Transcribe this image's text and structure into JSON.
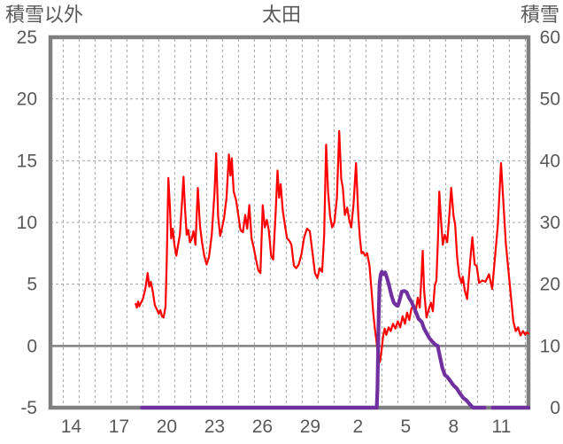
{
  "page": {
    "background": "#FFFFFF"
  },
  "titles": {
    "left_axis_title": "積雪以外",
    "chart_title": "太田",
    "right_axis_title": "積雪"
  },
  "chart_data": {
    "type": "line",
    "title": "太田",
    "left_axis": {
      "title": "積雪以外",
      "min": -5,
      "max": 25,
      "tick_interval": 5,
      "ticks": [
        25,
        20,
        15,
        10,
        5,
        0,
        -5
      ]
    },
    "right_axis": {
      "title": "積雪",
      "min": 0,
      "max": 60,
      "tick_interval": 10,
      "ticks": [
        60,
        50,
        40,
        30,
        20,
        10,
        0
      ]
    },
    "x_axis": {
      "domain_min": 13.2,
      "domain_max": 43.2,
      "gridline_interval_days": 1,
      "gridline_day_start": 14,
      "gridline_day_end": 43,
      "tick_labels": [
        {
          "label": "14",
          "t": 14.5
        },
        {
          "label": "17",
          "t": 17.5
        },
        {
          "label": "20",
          "t": 20.5
        },
        {
          "label": "23",
          "t": 23.5
        },
        {
          "label": "26",
          "t": 26.5
        },
        {
          "label": "29",
          "t": 29.5
        },
        {
          "label": "2",
          "t": 32.5
        },
        {
          "label": "5",
          "t": 35.5
        },
        {
          "label": "8",
          "t": 38.5
        },
        {
          "label": "11",
          "t": 41.5
        }
      ]
    },
    "grid": {
      "dash_color": "#A3A3A3",
      "zero_line_color": "#808080",
      "border_color": "#808080"
    },
    "series": [
      {
        "id": "temperature-non-snow",
        "axis": "left",
        "color": "#FF0000",
        "width": 2.2,
        "points": [
          [
            18.55,
            3.4
          ],
          [
            18.62,
            3.1
          ],
          [
            18.7,
            3.6
          ],
          [
            18.78,
            3.2
          ],
          [
            18.88,
            3.5
          ],
          [
            19.0,
            3.8
          ],
          [
            19.15,
            4.6
          ],
          [
            19.3,
            5.9
          ],
          [
            19.4,
            4.8
          ],
          [
            19.5,
            5.2
          ],
          [
            19.62,
            4.4
          ],
          [
            19.75,
            3.3
          ],
          [
            19.9,
            2.9
          ],
          [
            20.0,
            2.6
          ],
          [
            20.1,
            2.9
          ],
          [
            20.2,
            2.4
          ],
          [
            20.3,
            2.3
          ],
          [
            20.42,
            3.2
          ],
          [
            20.5,
            7.0
          ],
          [
            20.6,
            13.6
          ],
          [
            20.7,
            11.2
          ],
          [
            20.78,
            8.7
          ],
          [
            20.88,
            9.5
          ],
          [
            20.98,
            8.2
          ],
          [
            21.1,
            7.3
          ],
          [
            21.2,
            8.1
          ],
          [
            21.32,
            9.0
          ],
          [
            21.45,
            11.5
          ],
          [
            21.55,
            13.7
          ],
          [
            21.65,
            11.0
          ],
          [
            21.75,
            9.0
          ],
          [
            21.85,
            9.4
          ],
          [
            21.95,
            8.4
          ],
          [
            22.05,
            8.6
          ],
          [
            22.18,
            9.3
          ],
          [
            22.3,
            8.2
          ],
          [
            22.45,
            12.8
          ],
          [
            22.58,
            9.8
          ],
          [
            22.72,
            8.3
          ],
          [
            22.85,
            7.3
          ],
          [
            23.0,
            6.6
          ],
          [
            23.15,
            7.2
          ],
          [
            23.32,
            9.0
          ],
          [
            23.5,
            12.5
          ],
          [
            23.6,
            15.6
          ],
          [
            23.72,
            10.5
          ],
          [
            23.85,
            8.9
          ],
          [
            23.98,
            9.6
          ],
          [
            24.1,
            10.4
          ],
          [
            24.25,
            12.0
          ],
          [
            24.4,
            15.5
          ],
          [
            24.5,
            13.8
          ],
          [
            24.58,
            15.2
          ],
          [
            24.7,
            12.5
          ],
          [
            24.85,
            11.8
          ],
          [
            25.0,
            10.5
          ],
          [
            25.12,
            9.4
          ],
          [
            25.28,
            9.2
          ],
          [
            25.42,
            10.6
          ],
          [
            25.55,
            9.5
          ],
          [
            25.68,
            11.4
          ],
          [
            25.82,
            8.7
          ],
          [
            25.95,
            8.0
          ],
          [
            26.1,
            7.0
          ],
          [
            26.25,
            6.1
          ],
          [
            26.38,
            5.9
          ],
          [
            26.52,
            11.4
          ],
          [
            26.65,
            9.6
          ],
          [
            26.78,
            10.2
          ],
          [
            26.9,
            9.4
          ],
          [
            27.05,
            7.3
          ],
          [
            27.18,
            7.0
          ],
          [
            27.32,
            10.5
          ],
          [
            27.45,
            14.2
          ],
          [
            27.55,
            12.0
          ],
          [
            27.65,
            13.1
          ],
          [
            27.78,
            11.0
          ],
          [
            27.9,
            9.9
          ],
          [
            28.05,
            8.7
          ],
          [
            28.2,
            8.5
          ],
          [
            28.32,
            8.2
          ],
          [
            28.48,
            6.5
          ],
          [
            28.62,
            6.3
          ],
          [
            28.78,
            6.6
          ],
          [
            28.95,
            7.4
          ],
          [
            29.12,
            8.8
          ],
          [
            29.3,
            9.5
          ],
          [
            29.48,
            9.3
          ],
          [
            29.65,
            7.5
          ],
          [
            29.8,
            5.9
          ],
          [
            29.95,
            5.5
          ],
          [
            30.1,
            6.3
          ],
          [
            30.25,
            6.0
          ],
          [
            30.38,
            9.0
          ],
          [
            30.5,
            16.3
          ],
          [
            30.62,
            12.5
          ],
          [
            30.75,
            10.5
          ],
          [
            30.88,
            9.6
          ],
          [
            31.02,
            10.0
          ],
          [
            31.18,
            12.0
          ],
          [
            31.32,
            17.4
          ],
          [
            31.45,
            13.5
          ],
          [
            31.55,
            12.8
          ],
          [
            31.68,
            10.6
          ],
          [
            31.82,
            11.2
          ],
          [
            31.95,
            10.2
          ],
          [
            32.08,
            9.6
          ],
          [
            32.22,
            11.5
          ],
          [
            32.38,
            14.8
          ],
          [
            32.52,
            10.5
          ],
          [
            32.62,
            8.7
          ],
          [
            32.72,
            7.5
          ],
          [
            32.82,
            7.6
          ],
          [
            32.95,
            7.3
          ],
          [
            33.08,
            7.5
          ],
          [
            33.22,
            6.5
          ],
          [
            33.35,
            4.5
          ],
          [
            33.45,
            2.8
          ],
          [
            33.55,
            1.5
          ],
          [
            33.65,
            0.5
          ],
          [
            33.78,
            -1.0
          ],
          [
            33.88,
            -1.3
          ],
          [
            33.98,
            -0.4
          ],
          [
            34.08,
            0.8
          ],
          [
            34.18,
            1.4
          ],
          [
            34.28,
            0.9
          ],
          [
            34.42,
            1.5
          ],
          [
            34.55,
            1.2
          ],
          [
            34.7,
            1.8
          ],
          [
            34.85,
            1.4
          ],
          [
            35.0,
            2.0
          ],
          [
            35.15,
            1.5
          ],
          [
            35.3,
            2.4
          ],
          [
            35.45,
            1.8
          ],
          [
            35.58,
            2.7
          ],
          [
            35.72,
            2.1
          ],
          [
            35.85,
            3.0
          ],
          [
            35.98,
            3.3
          ],
          [
            36.1,
            2.6
          ],
          [
            36.25,
            3.9
          ],
          [
            36.38,
            3.1
          ],
          [
            36.5,
            6.0
          ],
          [
            36.56,
            7.7
          ],
          [
            36.65,
            4.5
          ],
          [
            36.8,
            2.3
          ],
          [
            36.95,
            3.0
          ],
          [
            37.08,
            3.5
          ],
          [
            37.2,
            2.8
          ],
          [
            37.32,
            4.9
          ],
          [
            37.42,
            5.3
          ],
          [
            37.52,
            8.7
          ],
          [
            37.6,
            12.5
          ],
          [
            37.72,
            10.0
          ],
          [
            37.82,
            8.2
          ],
          [
            37.95,
            9.0
          ],
          [
            38.1,
            8.4
          ],
          [
            38.22,
            10.4
          ],
          [
            38.35,
            12.8
          ],
          [
            38.5,
            10.5
          ],
          [
            38.6,
            9.8
          ],
          [
            38.72,
            7.2
          ],
          [
            38.85,
            5.7
          ],
          [
            39.0,
            5.1
          ],
          [
            39.08,
            5.6
          ],
          [
            39.2,
            4.5
          ],
          [
            39.35,
            3.8
          ],
          [
            39.55,
            7.0
          ],
          [
            39.68,
            8.8
          ],
          [
            39.82,
            6.6
          ],
          [
            39.95,
            6.5
          ],
          [
            40.1,
            5.1
          ],
          [
            40.3,
            5.3
          ],
          [
            40.5,
            5.2
          ],
          [
            40.72,
            5.8
          ],
          [
            40.92,
            4.6
          ],
          [
            41.1,
            7.2
          ],
          [
            41.28,
            9.8
          ],
          [
            41.48,
            14.8
          ],
          [
            41.62,
            11.7
          ],
          [
            41.78,
            8.3
          ],
          [
            41.95,
            6.0
          ],
          [
            42.1,
            4.0
          ],
          [
            42.25,
            2.0
          ],
          [
            42.4,
            1.2
          ],
          [
            42.55,
            1.5
          ],
          [
            42.7,
            0.85
          ],
          [
            42.85,
            1.2
          ],
          [
            43.0,
            0.9
          ],
          [
            43.1,
            1.1
          ],
          [
            43.2,
            1.0
          ]
        ]
      },
      {
        "id": "snow-depth",
        "axis": "right",
        "color": "#7030A0",
        "width": 4.2,
        "segments": [
          [
            [
              18.94,
              0
            ],
            [
              30.0,
              0
            ],
            [
              33.0,
              0
            ],
            [
              33.68,
              0
            ],
            [
              33.72,
              3
            ],
            [
              33.76,
              9
            ],
            [
              33.8,
              15
            ],
            [
              33.85,
              20
            ],
            [
              33.92,
              21.5
            ],
            [
              34.0,
              22.0
            ],
            [
              34.1,
              21.6
            ],
            [
              34.2,
              21.9
            ],
            [
              34.3,
              21.2
            ],
            [
              34.45,
              19.8
            ],
            [
              34.6,
              18.2
            ],
            [
              34.75,
              17.0
            ],
            [
              34.9,
              16.6
            ],
            [
              35.0,
              16.5
            ],
            [
              35.1,
              17.3
            ],
            [
              35.25,
              18.8
            ],
            [
              35.4,
              18.9
            ],
            [
              35.55,
              18.7
            ],
            [
              35.7,
              17.8
            ],
            [
              35.85,
              17.2
            ],
            [
              36.0,
              16.3
            ],
            [
              36.15,
              15.4
            ],
            [
              36.3,
              14.4
            ],
            [
              36.5,
              13.9
            ],
            [
              36.65,
              12.8
            ],
            [
              36.8,
              12.1
            ],
            [
              37.0,
              11.2
            ],
            [
              37.2,
              10.6
            ],
            [
              37.35,
              10.2
            ],
            [
              37.5,
              10.0
            ],
            [
              37.65,
              8.2
            ],
            [
              37.8,
              6.4
            ],
            [
              37.95,
              5.3
            ],
            [
              38.1,
              5.0
            ],
            [
              38.3,
              4.3
            ],
            [
              38.5,
              3.6
            ],
            [
              38.7,
              3.1
            ],
            [
              38.9,
              2.3
            ],
            [
              39.1,
              1.6
            ],
            [
              39.3,
              1.2
            ],
            [
              39.5,
              0.6
            ],
            [
              39.68,
              0.1
            ],
            [
              39.75,
              0
            ],
            [
              40.45,
              0
            ]
          ],
          [
            [
              40.95,
              0
            ],
            [
              43.2,
              0
            ]
          ]
        ]
      }
    ]
  }
}
